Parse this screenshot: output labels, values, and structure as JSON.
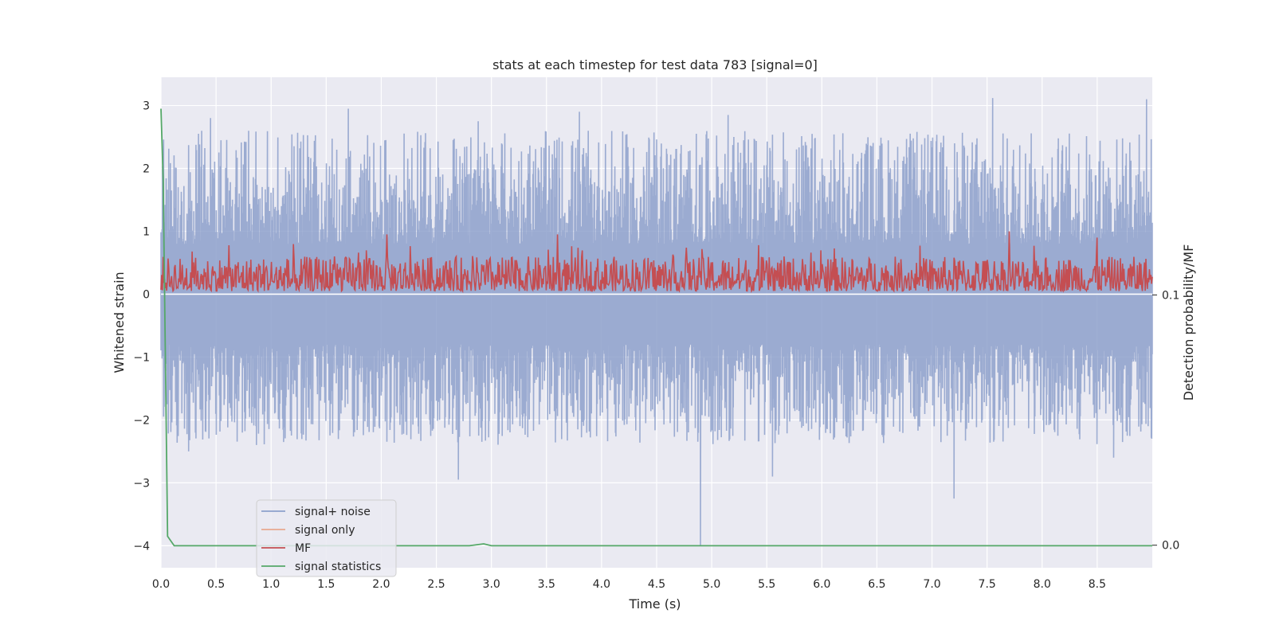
{
  "chart_data": {
    "type": "line",
    "title": "stats at each timestep for test data 783 [signal=0]",
    "xlabel": "Time (s)",
    "ylabel": "Whitened strain",
    "ylabel_right": "Detection probability/MF",
    "xlim": [
      0.0,
      9.0
    ],
    "ylim": [
      -4.35,
      3.45
    ],
    "ylim_right": [
      -0.009,
      0.187
    ],
    "x_ticks": [
      "0.0",
      "0.5",
      "1.0",
      "1.5",
      "2.0",
      "2.5",
      "3.0",
      "3.5",
      "4.0",
      "4.5",
      "5.0",
      "5.5",
      "6.0",
      "6.5",
      "7.0",
      "7.5",
      "8.0",
      "8.5"
    ],
    "y_ticks": [
      "3",
      "2",
      "1",
      "0",
      "−1",
      "−2",
      "−3",
      "−4"
    ],
    "y_ticks_right": [
      "0.1",
      "0.0"
    ],
    "grid": true,
    "legend_position": "lower-left",
    "legend": [
      "signal+ noise",
      "signal only",
      "MF",
      "signal statistics"
    ],
    "colors": {
      "noise": "#8da0cb",
      "signal_only": "#e8a98f",
      "mf": "#c44e52",
      "stats": "#55a868",
      "axes_bg": "#eaeaf2"
    },
    "series": [
      {
        "name": "signal+ noise",
        "description_of_values": "dense noise trace",
        "envelope_upper_peaks": [
          [
            0.45,
            2.8
          ],
          [
            1.7,
            2.95
          ],
          [
            2.88,
            2.75
          ],
          [
            3.8,
            2.9
          ],
          [
            5.15,
            2.85
          ],
          [
            7.55,
            3.12
          ],
          [
            8.95,
            3.1
          ]
        ],
        "envelope_lower_peaks": [
          [
            0.25,
            -2.5
          ],
          [
            2.7,
            -2.95
          ],
          [
            4.9,
            -4.0
          ],
          [
            5.55,
            -2.9
          ],
          [
            7.2,
            -3.25
          ],
          [
            8.65,
            -2.6
          ]
        ]
      },
      {
        "name": "signal only",
        "values": "flat at 0 (no signal)"
      },
      {
        "name": "MF",
        "y_range": [
          0.0,
          0.95
        ],
        "spikes": [
          [
            2.05,
            0.95
          ],
          [
            3.6,
            0.95
          ],
          [
            7.7,
            1.0
          ],
          [
            8.5,
            0.9
          ]
        ]
      },
      {
        "name": "signal statistics",
        "x": [
          0.0,
          0.02,
          0.06,
          0.12,
          2.8,
          2.93,
          3.0,
          9.0
        ],
        "y": [
          2.95,
          1.8,
          -3.85,
          -4.0,
          -4.0,
          -3.97,
          -4.0,
          -4.0
        ]
      }
    ]
  }
}
